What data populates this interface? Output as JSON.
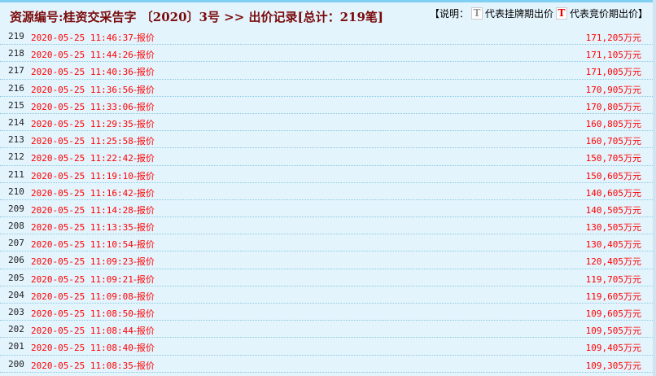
{
  "header": {
    "title": "资源编号:桂资交采告字 〔2020〕3号 >> 出价记录[总计：219笔]",
    "legend_prefix": "【说明：",
    "legend_gray_icon": "T",
    "legend_gray_label": "代表挂牌期出价",
    "legend_red_icon": "T",
    "legend_red_label": "代表竞价期出价】"
  },
  "colors": {
    "title": "#7a0a0a",
    "bid": "#ff0000",
    "background": "#e3f4fd"
  },
  "bid_suffix": "-报价",
  "unit": "万元",
  "rows": [
    {
      "no": "219",
      "time": "2020-05-25 11:46:37",
      "price": "171,205"
    },
    {
      "no": "218",
      "time": "2020-05-25 11:44:26",
      "price": "171,105"
    },
    {
      "no": "217",
      "time": "2020-05-25 11:40:36",
      "price": "171,005"
    },
    {
      "no": "216",
      "time": "2020-05-25 11:36:56",
      "price": "170,905"
    },
    {
      "no": "215",
      "time": "2020-05-25 11:33:06",
      "price": "170,805"
    },
    {
      "no": "214",
      "time": "2020-05-25 11:29:35",
      "price": "160,805"
    },
    {
      "no": "213",
      "time": "2020-05-25 11:25:58",
      "price": "160,705"
    },
    {
      "no": "212",
      "time": "2020-05-25 11:22:42",
      "price": "150,705"
    },
    {
      "no": "211",
      "time": "2020-05-25 11:19:10",
      "price": "150,605"
    },
    {
      "no": "210",
      "time": "2020-05-25 11:16:42",
      "price": "140,605"
    },
    {
      "no": "209",
      "time": "2020-05-25 11:14:28",
      "price": "140,505"
    },
    {
      "no": "208",
      "time": "2020-05-25 11:13:35",
      "price": "130,505"
    },
    {
      "no": "207",
      "time": "2020-05-25 11:10:54",
      "price": "130,405"
    },
    {
      "no": "206",
      "time": "2020-05-25 11:09:23",
      "price": "120,405"
    },
    {
      "no": "205",
      "time": "2020-05-25 11:09:21",
      "price": "119,705"
    },
    {
      "no": "204",
      "time": "2020-05-25 11:09:08",
      "price": "119,605"
    },
    {
      "no": "203",
      "time": "2020-05-25 11:08:50",
      "price": "109,605"
    },
    {
      "no": "202",
      "time": "2020-05-25 11:08:44",
      "price": "109,505"
    },
    {
      "no": "201",
      "time": "2020-05-25 11:08:40",
      "price": "109,405"
    },
    {
      "no": "200",
      "time": "2020-05-25 11:08:35",
      "price": "109,305"
    }
  ]
}
